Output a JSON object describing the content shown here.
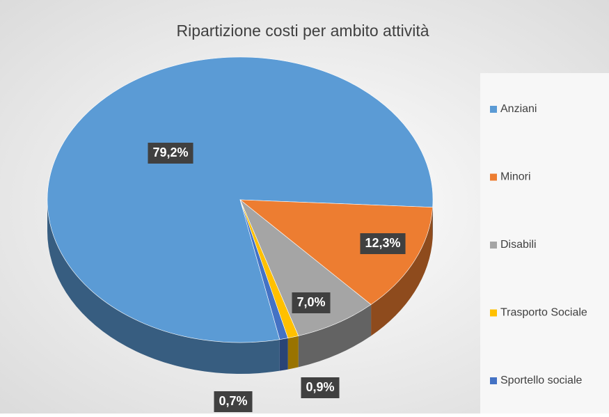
{
  "chart_data": {
    "type": "pie",
    "title": "Ripartizione costi per ambito attività",
    "categories": [
      "Anziani",
      "Minori",
      "Disabili",
      "Trasporto Sociale",
      "Sportello sociale"
    ],
    "values": [
      79.2,
      12.3,
      7.0,
      0.9,
      0.7
    ],
    "value_labels": [
      "79,2%",
      "12,3%",
      "7,0%",
      "0,9%",
      "0,7%"
    ],
    "colors": [
      "#5b9bd5",
      "#ed7d31",
      "#a5a5a5",
      "#ffc000",
      "#4472c4"
    ],
    "legend": "right"
  }
}
